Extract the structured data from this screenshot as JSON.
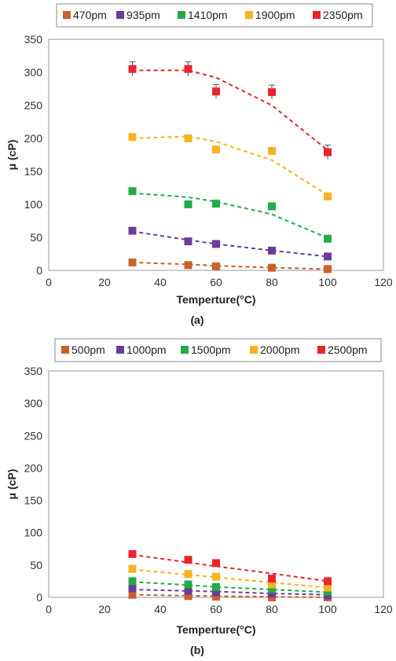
{
  "chart_data": [
    {
      "type": "scatter",
      "caption": "(a)",
      "xlabel": "Temperture(°C)",
      "ylabel": "μ (cP)",
      "xlim": [
        0,
        120
      ],
      "ylim": [
        0,
        350
      ],
      "xticks": [
        0,
        20,
        40,
        60,
        80,
        100,
        120
      ],
      "yticks": [
        0,
        50,
        100,
        150,
        200,
        250,
        300,
        350
      ],
      "legend_position": "top",
      "grid": false,
      "series": [
        {
          "name": "470pm",
          "color": "#c8622a",
          "x": [
            30,
            50,
            60,
            80,
            100
          ],
          "y": [
            12,
            8,
            6,
            4,
            2
          ],
          "fit": [
            12,
            9,
            7,
            4,
            2
          ]
        },
        {
          "name": "935pm",
          "color": "#6a3d9a",
          "x": [
            30,
            50,
            60,
            80,
            100
          ],
          "y": [
            60,
            44,
            40,
            30,
            21
          ],
          "fit": [
            59,
            46,
            40,
            30,
            21
          ]
        },
        {
          "name": "1410pm",
          "color": "#22ab4a",
          "x": [
            30,
            50,
            60,
            80,
            100
          ],
          "y": [
            120,
            100,
            101,
            97,
            48
          ],
          "fit": [
            117,
            111,
            104,
            85,
            49
          ]
        },
        {
          "name": "1900pm",
          "color": "#f5b41f",
          "x": [
            30,
            50,
            60,
            80,
            100
          ],
          "y": [
            202,
            200,
            183,
            181,
            112
          ],
          "fit": [
            200,
            203,
            195,
            167,
            114
          ]
        },
        {
          "name": "2350pm",
          "color": "#e8252b",
          "x": [
            30,
            50,
            60,
            80,
            100
          ],
          "y": [
            305,
            305,
            271,
            270,
            179
          ],
          "fit": [
            303,
            303,
            292,
            250,
            182
          ]
        }
      ]
    },
    {
      "type": "scatter",
      "caption": "(b)",
      "xlabel": "Temperture(°C)",
      "ylabel": "μ (cP)",
      "xlim": [
        0,
        120
      ],
      "ylim": [
        0,
        350
      ],
      "xticks": [
        0,
        20,
        40,
        60,
        80,
        100,
        120
      ],
      "yticks": [
        0,
        50,
        100,
        150,
        200,
        250,
        300,
        350
      ],
      "legend_position": "top",
      "grid": false,
      "series": [
        {
          "name": "500pm",
          "color": "#c8622a",
          "x": [
            30,
            50,
            60,
            80,
            100
          ],
          "y": [
            4,
            2,
            1,
            0,
            0
          ],
          "fit": [
            4,
            2.5,
            2,
            1,
            0
          ]
        },
        {
          "name": "1000pm",
          "color": "#6a3d9a",
          "x": [
            30,
            50,
            60,
            80,
            100
          ],
          "y": [
            14,
            10,
            8,
            6,
            3
          ],
          "fit": [
            12,
            10,
            9,
            6,
            4
          ]
        },
        {
          "name": "1500pm",
          "color": "#22ab4a",
          "x": [
            30,
            50,
            60,
            80,
            100
          ],
          "y": [
            25,
            20,
            16,
            13,
            9
          ],
          "fit": [
            24,
            19,
            16,
            12,
            8
          ]
        },
        {
          "name": "2000pm",
          "color": "#f5b41f",
          "x": [
            30,
            50,
            60,
            80,
            100
          ],
          "y": [
            44,
            36,
            32,
            20,
            15
          ],
          "fit": [
            43,
            35,
            31,
            23,
            15
          ]
        },
        {
          "name": "2500pm",
          "color": "#e8252b",
          "x": [
            30,
            50,
            60,
            80,
            100
          ],
          "y": [
            67,
            58,
            53,
            29,
            25
          ],
          "fit": [
            66,
            54,
            48,
            37,
            25
          ]
        }
      ]
    }
  ]
}
